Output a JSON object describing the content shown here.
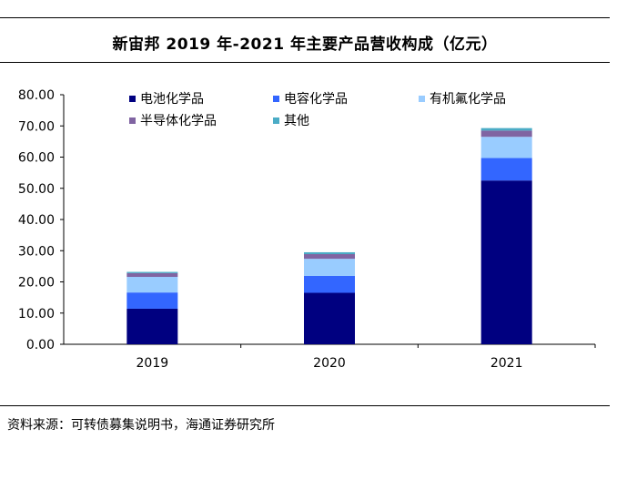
{
  "chart_data": {
    "type": "bar",
    "stacked": true,
    "title": "新宙邦 2019 年-2021 年主要产品营收构成（亿元）",
    "xlabel": "",
    "ylabel": "",
    "categories": [
      "2019",
      "2020",
      "2021"
    ],
    "ylim": [
      0,
      80
    ],
    "yticks": [
      "0.00",
      "10.00",
      "20.00",
      "30.00",
      "40.00",
      "50.00",
      "60.00",
      "70.00",
      "80.00"
    ],
    "series": [
      {
        "name": "电池化学品",
        "color": "#000080",
        "values": [
          11.4,
          16.5,
          52.5
        ]
      },
      {
        "name": "电容化学品",
        "color": "#3366ff",
        "values": [
          5.2,
          5.4,
          7.2
        ]
      },
      {
        "name": "有机氟化学品",
        "color": "#99ccff",
        "values": [
          5.0,
          5.5,
          6.8
        ]
      },
      {
        "name": "半导体化学品",
        "color": "#8064a2",
        "values": [
          1.2,
          1.5,
          2.0
        ]
      },
      {
        "name": "其他",
        "color": "#4bacc6",
        "values": [
          0.4,
          0.6,
          0.8
        ]
      }
    ],
    "legend_position": "top-left"
  },
  "source_text": "资料来源：可转债募集说明书，海通证券研究所"
}
